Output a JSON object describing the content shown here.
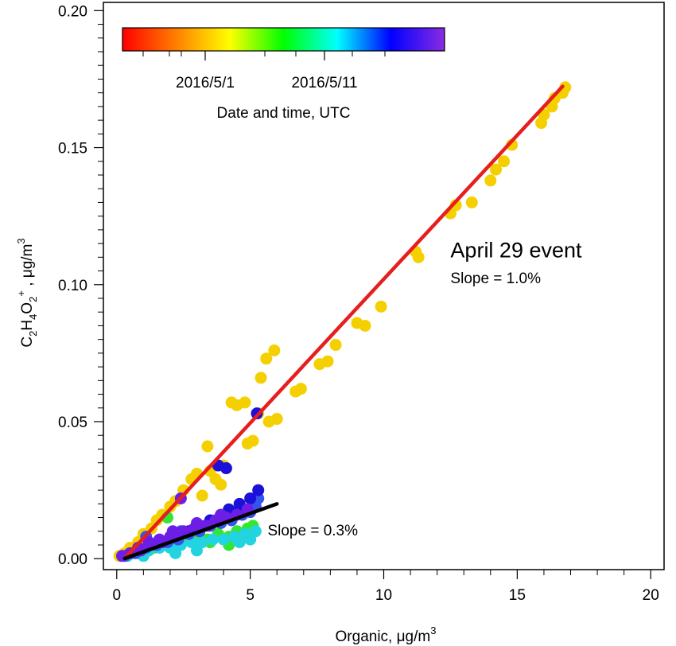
{
  "chart_data": {
    "type": "scatter",
    "xlabel_main": "Organic, μg/m",
    "xlabel_sup": "3",
    "ylabel": {
      "parts": [
        {
          "t": "C",
          "s": "n"
        },
        {
          "t": "2",
          "s": "sub"
        },
        {
          "t": "H",
          "s": "n"
        },
        {
          "t": "4",
          "s": "sub"
        },
        {
          "t": "O",
          "s": "n"
        },
        {
          "t": "2",
          "s": "sub"
        },
        {
          "t": "+",
          "s": "sup"
        },
        {
          "t": " , μg/m",
          "s": "n"
        },
        {
          "t": "3",
          "s": "sup"
        }
      ]
    },
    "xlim": [
      -0.5,
      20.5
    ],
    "ylim": [
      -0.004,
      0.203
    ],
    "x_ticks": [
      0,
      5,
      10,
      15,
      20
    ],
    "y_ticks": [
      0.0,
      0.05,
      0.1,
      0.15,
      0.2
    ],
    "x_tick_labels": [
      "0",
      "5",
      "10",
      "15",
      "20"
    ],
    "y_tick_labels": [
      "0.00",
      "0.05",
      "0.10",
      "0.15",
      "0.20"
    ],
    "colorbar": {
      "label": "Date and time, UTC",
      "tick_labels": [
        "2016/5/1",
        "2016/5/11"
      ],
      "colormap": [
        "#ff0000",
        "#ff7f00",
        "#ffff00",
        "#00ff00",
        "#00ffff",
        "#0000ff",
        "#8a2be2"
      ]
    },
    "annotations": [
      {
        "text": "April 29 event",
        "x": 12.5,
        "y": 0.11,
        "size": "large"
      },
      {
        "text": "Slope = 1.0%",
        "x": 12.5,
        "y": 0.1005,
        "size": "small"
      },
      {
        "text": "Slope = 0.3%",
        "x": 5.65,
        "y": 0.0085,
        "size": "small"
      }
    ],
    "fit_lines": [
      {
        "name": "April 29 event fit",
        "color": "#e61e1e",
        "slope": 0.0105,
        "intercept": -0.003,
        "x_range": [
          0.35,
          16.7
        ]
      },
      {
        "name": "Background fit",
        "color": "#000000",
        "slope": 0.0035,
        "intercept": -0.001,
        "x_range": [
          0.3,
          6.0
        ]
      }
    ],
    "series": [
      {
        "color": "#f5d000",
        "points": [
          [
            0.1,
            0.001
          ],
          [
            0.3,
            0.002
          ],
          [
            0.5,
            0.004
          ],
          [
            0.8,
            0.006
          ],
          [
            1.0,
            0.009
          ],
          [
            1.3,
            0.011
          ],
          [
            1.5,
            0.014
          ],
          [
            1.7,
            0.016
          ],
          [
            2.0,
            0.019
          ],
          [
            2.2,
            0.021
          ],
          [
            2.5,
            0.025
          ],
          [
            2.8,
            0.029
          ],
          [
            3.0,
            0.031
          ],
          [
            3.2,
            0.023
          ],
          [
            3.4,
            0.041
          ],
          [
            3.5,
            0.032
          ],
          [
            3.7,
            0.029
          ],
          [
            3.9,
            0.027
          ],
          [
            4.0,
            0.034
          ],
          [
            4.3,
            0.057
          ],
          [
            4.5,
            0.056
          ],
          [
            4.8,
            0.057
          ],
          [
            4.9,
            0.042
          ],
          [
            5.1,
            0.043
          ],
          [
            5.3,
            0.053
          ],
          [
            5.4,
            0.066
          ],
          [
            5.6,
            0.073
          ],
          [
            5.7,
            0.05
          ],
          [
            5.9,
            0.076
          ],
          [
            6.0,
            0.051
          ],
          [
            6.7,
            0.061
          ],
          [
            6.9,
            0.062
          ],
          [
            7.6,
            0.071
          ],
          [
            7.9,
            0.072
          ],
          [
            8.2,
            0.078
          ],
          [
            9.0,
            0.086
          ],
          [
            9.3,
            0.085
          ],
          [
            9.9,
            0.092
          ],
          [
            11.2,
            0.112
          ],
          [
            11.3,
            0.11
          ],
          [
            12.5,
            0.126
          ],
          [
            12.7,
            0.129
          ],
          [
            13.3,
            0.13
          ],
          [
            14.0,
            0.138
          ],
          [
            14.2,
            0.142
          ],
          [
            14.5,
            0.145
          ],
          [
            14.8,
            0.151
          ],
          [
            15.9,
            0.159
          ],
          [
            16.0,
            0.162
          ],
          [
            16.3,
            0.165
          ],
          [
            16.4,
            0.168
          ],
          [
            16.7,
            0.17
          ],
          [
            16.8,
            0.172
          ]
        ]
      },
      {
        "color": "#33e633",
        "points": [
          [
            0.6,
            0.002
          ],
          [
            1.0,
            0.003
          ],
          [
            1.4,
            0.004
          ],
          [
            1.8,
            0.005
          ],
          [
            2.2,
            0.006
          ],
          [
            2.6,
            0.007
          ],
          [
            3.0,
            0.008
          ],
          [
            3.4,
            0.007
          ],
          [
            3.8,
            0.009
          ],
          [
            4.2,
            0.008
          ],
          [
            4.5,
            0.01
          ],
          [
            4.9,
            0.011
          ],
          [
            5.1,
            0.012
          ],
          [
            3.5,
            0.006
          ],
          [
            4.2,
            0.005
          ],
          [
            1.9,
            0.015
          ]
        ]
      },
      {
        "color": "#22d4e0",
        "points": [
          [
            0.4,
            0.001
          ],
          [
            0.8,
            0.002
          ],
          [
            1.2,
            0.003
          ],
          [
            1.6,
            0.004
          ],
          [
            2.0,
            0.004
          ],
          [
            2.4,
            0.005
          ],
          [
            2.8,
            0.006
          ],
          [
            3.2,
            0.006
          ],
          [
            3.6,
            0.007
          ],
          [
            4.0,
            0.007
          ],
          [
            4.4,
            0.008
          ],
          [
            4.8,
            0.009
          ],
          [
            5.2,
            0.01
          ],
          [
            1.0,
            0.001
          ],
          [
            2.2,
            0.002
          ],
          [
            3.0,
            0.003
          ],
          [
            4.6,
            0.006
          ],
          [
            5.0,
            0.007
          ],
          [
            1.5,
            0.006
          ]
        ]
      },
      {
        "color": "#3355ee",
        "points": [
          [
            0.3,
            0.001
          ],
          [
            0.7,
            0.002
          ],
          [
            1.1,
            0.004
          ],
          [
            1.5,
            0.005
          ],
          [
            1.9,
            0.006
          ],
          [
            2.3,
            0.007
          ],
          [
            2.7,
            0.009
          ],
          [
            3.1,
            0.01
          ],
          [
            3.5,
            0.012
          ],
          [
            3.9,
            0.013
          ],
          [
            4.3,
            0.014
          ],
          [
            4.7,
            0.016
          ],
          [
            5.0,
            0.017
          ],
          [
            5.2,
            0.019
          ],
          [
            5.3,
            0.022
          ],
          [
            5.1,
            0.02
          ],
          [
            2.4,
            0.01
          ],
          [
            1.1,
            0.008
          ]
        ]
      },
      {
        "color": "#1a10d8",
        "points": [
          [
            5.3,
            0.025
          ],
          [
            5.0,
            0.022
          ],
          [
            4.6,
            0.02
          ],
          [
            4.2,
            0.018
          ],
          [
            3.9,
            0.016
          ],
          [
            3.5,
            0.014
          ],
          [
            3.1,
            0.012
          ],
          [
            2.7,
            0.01
          ],
          [
            2.3,
            0.009
          ],
          [
            5.25,
            0.053
          ],
          [
            3.8,
            0.034
          ],
          [
            4.1,
            0.033
          ],
          [
            4.6,
            0.018
          ]
        ]
      },
      {
        "color": "#6d1ee6",
        "points": [
          [
            0.2,
            0.001
          ],
          [
            0.5,
            0.002
          ],
          [
            0.9,
            0.003
          ],
          [
            1.3,
            0.005
          ],
          [
            1.7,
            0.006
          ],
          [
            2.1,
            0.008
          ],
          [
            2.5,
            0.01
          ],
          [
            2.9,
            0.011
          ],
          [
            3.3,
            0.012
          ],
          [
            3.7,
            0.014
          ],
          [
            4.1,
            0.015
          ],
          [
            4.5,
            0.016
          ],
          [
            4.9,
            0.018
          ],
          [
            3.0,
            0.013
          ],
          [
            2.2,
            0.009
          ],
          [
            3.9,
            0.016
          ],
          [
            2.4,
            0.022
          ],
          [
            2.1,
            0.01
          ],
          [
            1.6,
            0.007
          ],
          [
            1.2,
            0.006
          ],
          [
            0.8,
            0.004
          ],
          [
            2.0,
            0.008
          ],
          [
            3.4,
            0.012
          ]
        ]
      }
    ]
  }
}
